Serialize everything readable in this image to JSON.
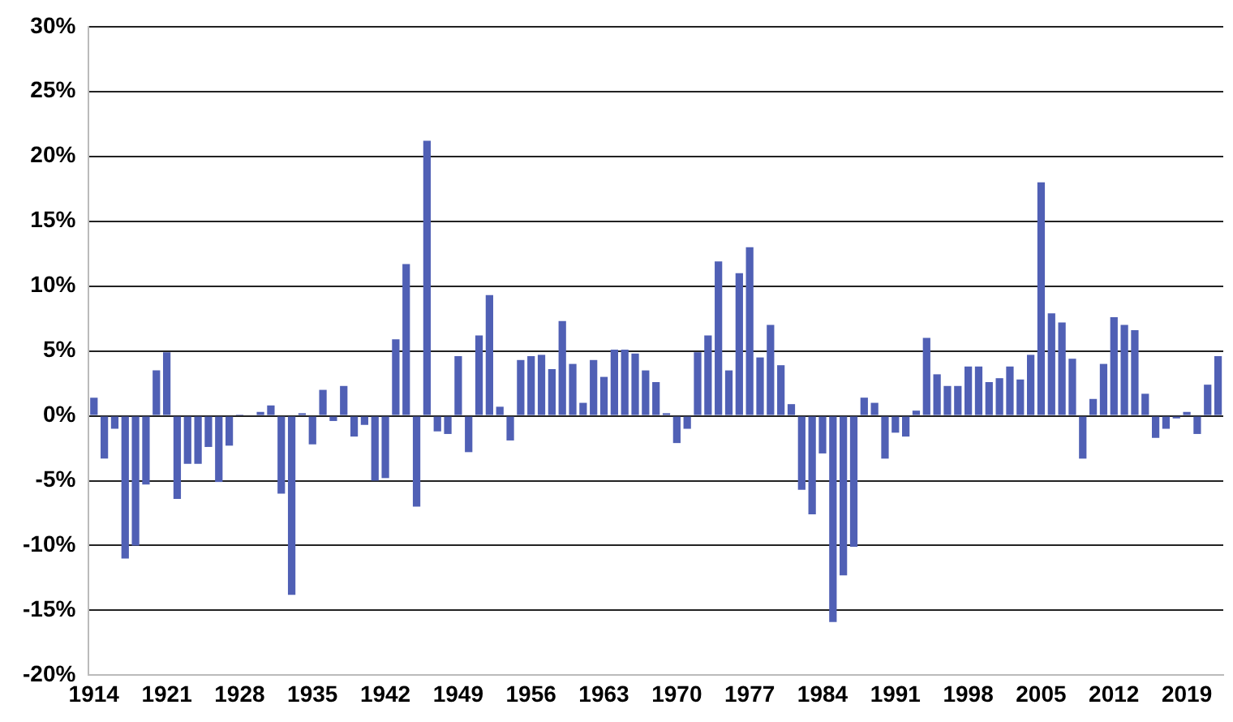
{
  "chart_data": {
    "type": "bar",
    "color": "#5060b5",
    "categories": [
      "1914",
      null,
      null,
      null,
      null,
      null,
      null,
      "1921",
      null,
      null,
      null,
      null,
      null,
      null,
      "1928",
      null,
      null,
      null,
      null,
      null,
      null,
      "1935",
      null,
      null,
      null,
      null,
      null,
      null,
      "1942",
      null,
      null,
      null,
      null,
      null,
      null,
      "1949",
      null,
      null,
      null,
      null,
      null,
      null,
      "1956",
      null,
      null,
      null,
      null,
      null,
      null,
      "1963",
      null,
      null,
      null,
      null,
      null,
      null,
      "1970",
      null,
      null,
      null,
      null,
      null,
      null,
      "1977",
      null,
      null,
      null,
      null,
      null,
      null,
      "1984",
      null,
      null,
      null,
      null,
      null,
      null,
      "1991",
      null,
      null,
      null,
      null,
      null,
      null,
      "1998",
      null,
      null,
      null,
      null,
      null,
      null,
      "2005",
      null,
      null,
      null,
      null,
      null,
      null,
      "2012",
      null,
      null,
      null,
      null,
      null,
      null,
      "2019",
      null,
      null,
      null
    ],
    "values": [
      1.4,
      -3.3,
      -1.0,
      -11.0,
      -10.0,
      -5.3,
      3.5,
      4.9,
      -6.4,
      -3.7,
      -3.7,
      -2.4,
      -5.1,
      -2.3,
      0.1,
      0,
      0.3,
      0.8,
      -6.0,
      -13.8,
      0.2,
      -2.2,
      2.0,
      -0.4,
      2.3,
      -1.6,
      -0.7,
      -5.0,
      -4.8,
      5.9,
      11.7,
      -7.0,
      21.2,
      -1.2,
      -1.4,
      4.6,
      -2.8,
      6.2,
      9.3,
      0.7,
      -1.9,
      4.3,
      4.6,
      4.7,
      3.6,
      7.3,
      4.0,
      1.0,
      4.3,
      3.0,
      5.1,
      5.1,
      4.8,
      3.5,
      2.6,
      0.2,
      -2.1,
      -1.0,
      4.9,
      6.2,
      11.9,
      3.5,
      11.0,
      13.0,
      4.5,
      7.0,
      3.9,
      0.9,
      -5.7,
      -7.6,
      -2.9,
      -15.9,
      -12.3,
      -10.1,
      1.4,
      1.0,
      -3.3,
      -1.3,
      -1.6,
      0.4,
      6.0,
      3.2,
      2.3,
      2.3,
      3.8,
      3.8,
      2.6,
      2.9,
      3.8,
      2.8,
      4.7,
      18.0,
      7.9,
      7.2,
      4.4,
      -3.3,
      1.3,
      4.0,
      7.6,
      7.0,
      6.6,
      1.7,
      -1.7,
      -1.0,
      -0.2,
      0.3,
      -1.4,
      2.4,
      4.6
    ],
    "ylim": [
      -20,
      30
    ],
    "yticks": [
      {
        "value": -20,
        "label": "-20%"
      },
      {
        "value": -15,
        "label": "-15%"
      },
      {
        "value": -10,
        "label": "-10%"
      },
      {
        "value": -5,
        "label": "-5%"
      },
      {
        "value": 0,
        "label": "0%"
      },
      {
        "value": 5,
        "label": "5%"
      },
      {
        "value": 10,
        "label": "10%"
      },
      {
        "value": 15,
        "label": "15%"
      },
      {
        "value": 20,
        "label": "20%"
      },
      {
        "value": 25,
        "label": "25%"
      },
      {
        "value": 30,
        "label": "30%"
      }
    ],
    "grid": "y",
    "legend": false
  }
}
